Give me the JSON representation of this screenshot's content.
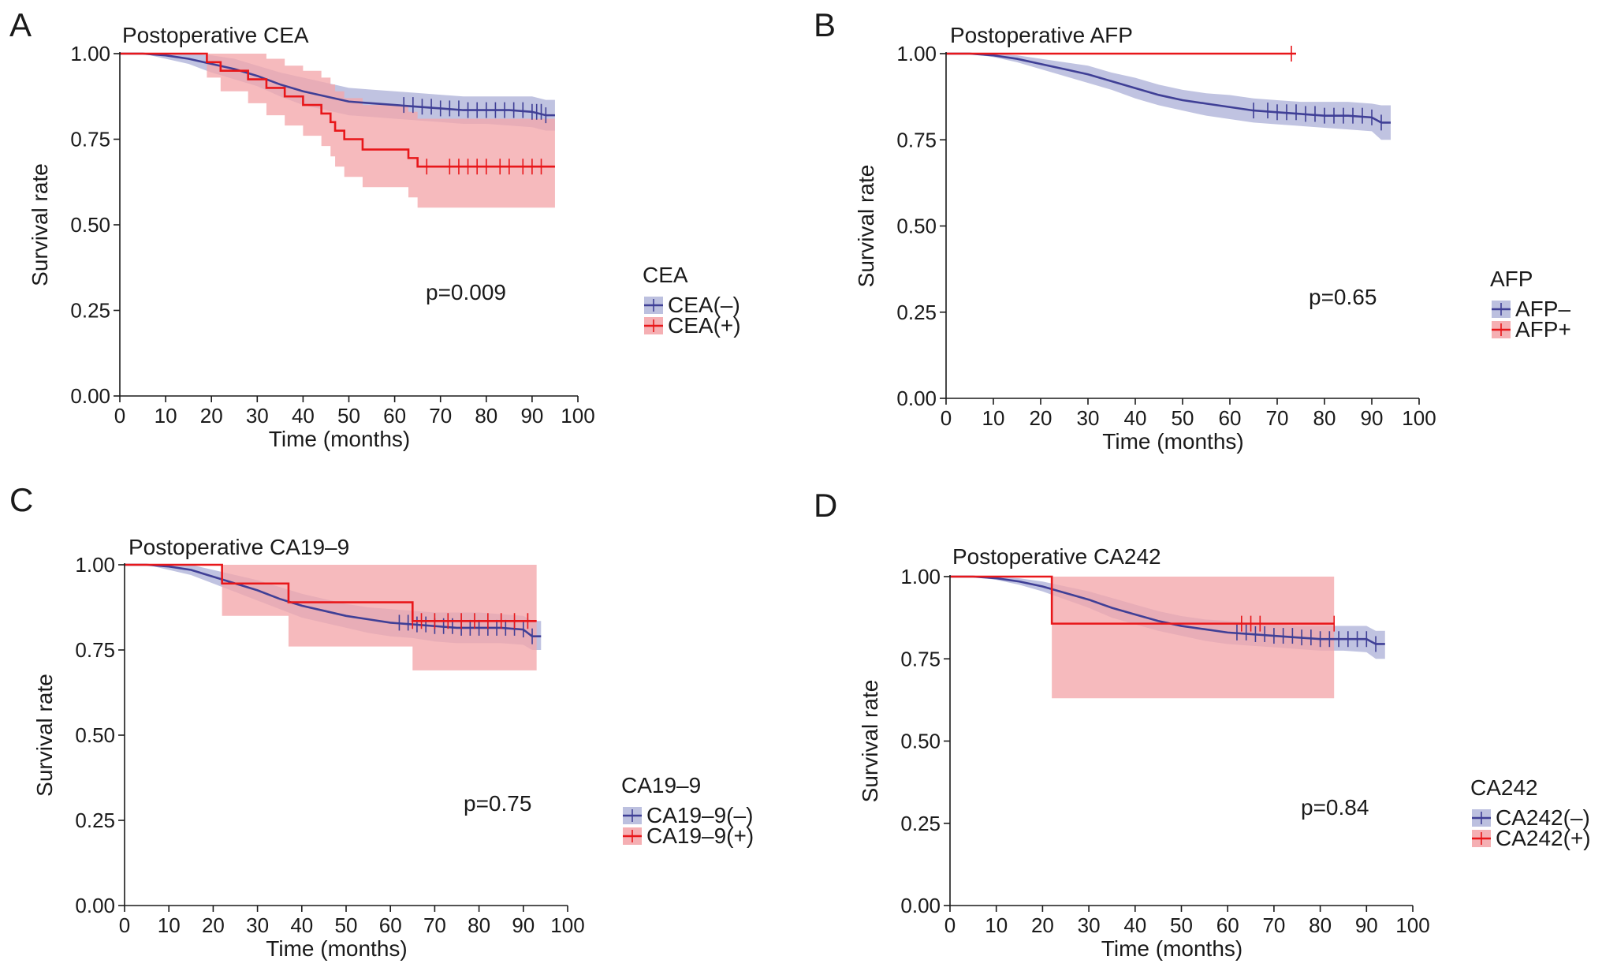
{
  "figure": {
    "colors": {
      "negative": "#3f3f96",
      "negative_band": "#b5b9dc",
      "positive": "#e8171a",
      "positive_band": "#f4a6ab",
      "axis": "#1a1a1a"
    }
  },
  "chart_data": [
    {
      "panel": "A",
      "type": "line",
      "subtype": "kaplan-meier",
      "title": "Postoperative CEA",
      "xlabel": "Time (months)",
      "ylabel": "Survival rate",
      "xlim": [
        0,
        100
      ],
      "ylim": [
        0,
        1
      ],
      "xticks": [
        "0",
        "10",
        "20",
        "30",
        "40",
        "50",
        "60",
        "70",
        "80",
        "90",
        "100"
      ],
      "yticks": [
        "0.00",
        "0.25",
        "0.50",
        "0.75",
        "1.00"
      ],
      "p_value": "p=0.009",
      "legend_title": "CEA",
      "series": [
        {
          "name": "CEA(–)",
          "color": "negative",
          "x": [
            0,
            5,
            10,
            15,
            20,
            25,
            30,
            35,
            40,
            45,
            50,
            55,
            60,
            65,
            70,
            75,
            80,
            85,
            90,
            93,
            95
          ],
          "y": [
            1.0,
            1.0,
            0.995,
            0.985,
            0.97,
            0.955,
            0.935,
            0.91,
            0.89,
            0.875,
            0.86,
            0.855,
            0.85,
            0.845,
            0.84,
            0.835,
            0.835,
            0.835,
            0.83,
            0.82,
            0.82
          ],
          "lower": [
            1.0,
            1.0,
            0.985,
            0.97,
            0.945,
            0.925,
            0.905,
            0.875,
            0.85,
            0.835,
            0.82,
            0.815,
            0.81,
            0.805,
            0.8,
            0.795,
            0.795,
            0.79,
            0.785,
            0.775,
            0.775
          ],
          "upper": [
            1.0,
            1.0,
            1.0,
            1.0,
            0.995,
            0.985,
            0.965,
            0.945,
            0.93,
            0.915,
            0.9,
            0.895,
            0.89,
            0.885,
            0.88,
            0.875,
            0.875,
            0.875,
            0.875,
            0.865,
            0.865
          ],
          "censor": [
            62,
            64,
            66,
            68,
            70,
            72,
            74,
            76,
            78,
            80,
            82,
            84,
            86,
            88,
            90,
            91,
            92,
            93
          ]
        },
        {
          "name": "CEA(+)",
          "color": "positive",
          "x": [
            0,
            19,
            19,
            22,
            22,
            28,
            28,
            32,
            32,
            36,
            36,
            40,
            40,
            44,
            44,
            46,
            46,
            47,
            47,
            49,
            49,
            53,
            53,
            61,
            61,
            63,
            63,
            65,
            65,
            95
          ],
          "y": [
            1.0,
            1.0,
            0.975,
            0.975,
            0.95,
            0.95,
            0.925,
            0.925,
            0.9,
            0.9,
            0.875,
            0.875,
            0.85,
            0.85,
            0.825,
            0.825,
            0.8,
            0.8,
            0.775,
            0.775,
            0.75,
            0.75,
            0.72,
            0.72,
            0.72,
            0.72,
            0.695,
            0.695,
            0.67,
            0.67
          ],
          "lower": [
            1.0,
            1.0,
            0.93,
            0.93,
            0.89,
            0.89,
            0.855,
            0.855,
            0.82,
            0.82,
            0.79,
            0.79,
            0.76,
            0.76,
            0.73,
            0.73,
            0.7,
            0.7,
            0.67,
            0.67,
            0.64,
            0.64,
            0.61,
            0.61,
            0.61,
            0.61,
            0.58,
            0.58,
            0.55,
            0.55
          ],
          "upper": [
            1.0,
            1.0,
            1.0,
            1.0,
            1.0,
            1.0,
            1.0,
            1.0,
            0.985,
            0.985,
            0.965,
            0.965,
            0.95,
            0.95,
            0.93,
            0.93,
            0.91,
            0.91,
            0.89,
            0.89,
            0.87,
            0.87,
            0.85,
            0.85,
            0.85,
            0.85,
            0.83,
            0.83,
            0.81,
            0.81
          ],
          "censor": [
            67,
            72,
            74,
            76,
            78,
            80,
            83,
            85,
            88,
            90,
            92
          ]
        }
      ]
    },
    {
      "panel": "B",
      "type": "line",
      "subtype": "kaplan-meier",
      "title": "Postoperative AFP",
      "xlabel": "Time (months)",
      "ylabel": "Survival rate",
      "xlim": [
        0,
        100
      ],
      "ylim": [
        0,
        1
      ],
      "xticks": [
        "0",
        "10",
        "20",
        "30",
        "40",
        "50",
        "60",
        "70",
        "80",
        "90",
        "100"
      ],
      "yticks": [
        "0.00",
        "0.25",
        "0.50",
        "0.75",
        "1.00"
      ],
      "p_value": "p=0.65",
      "legend_title": "AFP",
      "series": [
        {
          "name": "AFP–",
          "color": "negative",
          "x": [
            0,
            5,
            10,
            15,
            20,
            25,
            30,
            35,
            40,
            45,
            50,
            55,
            60,
            65,
            70,
            75,
            80,
            85,
            90,
            92,
            94
          ],
          "y": [
            1.0,
            1.0,
            0.995,
            0.985,
            0.97,
            0.955,
            0.94,
            0.92,
            0.9,
            0.88,
            0.865,
            0.855,
            0.845,
            0.835,
            0.83,
            0.825,
            0.82,
            0.82,
            0.815,
            0.8,
            0.8
          ],
          "lower": [
            1.0,
            1.0,
            0.99,
            0.975,
            0.955,
            0.935,
            0.915,
            0.895,
            0.87,
            0.85,
            0.835,
            0.82,
            0.81,
            0.8,
            0.795,
            0.79,
            0.785,
            0.78,
            0.775,
            0.75,
            0.75
          ],
          "upper": [
            1.0,
            1.0,
            1.0,
            0.995,
            0.985,
            0.975,
            0.965,
            0.945,
            0.93,
            0.91,
            0.895,
            0.885,
            0.88,
            0.87,
            0.865,
            0.86,
            0.86,
            0.86,
            0.855,
            0.85,
            0.85
          ],
          "censor": [
            65,
            68,
            70,
            72,
            74,
            76,
            78,
            80,
            82,
            84,
            86,
            88,
            90,
            92
          ]
        },
        {
          "name": "AFP+",
          "color": "positive",
          "x": [
            0,
            74
          ],
          "y": [
            1.0,
            1.0
          ],
          "lower": [
            1.0,
            1.0
          ],
          "upper": [
            1.0,
            1.0
          ],
          "censor": [
            73
          ]
        }
      ]
    },
    {
      "panel": "C",
      "type": "line",
      "subtype": "kaplan-meier",
      "title": "Postoperative CA19–9",
      "xlabel": "Time (months)",
      "ylabel": "Survival rate",
      "xlim": [
        0,
        100
      ],
      "ylim": [
        0,
        1
      ],
      "xticks": [
        "0",
        "10",
        "20",
        "30",
        "40",
        "50",
        "60",
        "70",
        "80",
        "90",
        "100"
      ],
      "yticks": [
        "0.00",
        "0.25",
        "0.50",
        "0.75",
        "1.00"
      ],
      "p_value": "p=0.75",
      "legend_title": "CA19–9",
      "series": [
        {
          "name": "CA19–9(–)",
          "color": "negative",
          "x": [
            0,
            5,
            10,
            15,
            20,
            25,
            30,
            35,
            40,
            45,
            50,
            55,
            60,
            65,
            70,
            75,
            80,
            85,
            90,
            92,
            94
          ],
          "y": [
            1.0,
            1.0,
            0.995,
            0.985,
            0.965,
            0.945,
            0.925,
            0.9,
            0.88,
            0.865,
            0.85,
            0.84,
            0.83,
            0.825,
            0.82,
            0.815,
            0.815,
            0.815,
            0.81,
            0.79,
            0.79
          ],
          "lower": [
            1.0,
            1.0,
            0.985,
            0.97,
            0.945,
            0.92,
            0.895,
            0.87,
            0.845,
            0.83,
            0.815,
            0.8,
            0.79,
            0.785,
            0.775,
            0.77,
            0.77,
            0.77,
            0.765,
            0.75,
            0.75
          ],
          "upper": [
            1.0,
            1.0,
            1.0,
            1.0,
            0.985,
            0.97,
            0.955,
            0.935,
            0.915,
            0.9,
            0.885,
            0.875,
            0.87,
            0.865,
            0.86,
            0.86,
            0.86,
            0.855,
            0.85,
            0.835,
            0.835
          ],
          "censor": [
            62,
            64,
            66,
            68,
            70,
            72,
            74,
            76,
            78,
            80,
            82,
            84,
            86,
            88,
            90,
            92
          ]
        },
        {
          "name": "CA19–9(+)",
          "color": "positive",
          "x": [
            0,
            22,
            22,
            37,
            37,
            65,
            65,
            93
          ],
          "y": [
            1.0,
            1.0,
            0.945,
            0.945,
            0.89,
            0.89,
            0.835,
            0.835
          ],
          "lower": [
            1.0,
            1.0,
            0.85,
            0.85,
            0.76,
            0.76,
            0.69,
            0.69
          ],
          "upper": [
            1.0,
            1.0,
            1.0,
            1.0,
            1.0,
            1.0,
            1.0,
            1.0
          ],
          "censor": [
            65,
            67,
            70,
            73,
            76,
            79,
            82,
            85,
            88,
            91
          ]
        }
      ]
    },
    {
      "panel": "D",
      "type": "line",
      "subtype": "kaplan-meier",
      "title": "Postoperative CA242",
      "xlabel": "Time (months)",
      "ylabel": "Survival rate",
      "xlim": [
        0,
        100
      ],
      "ylim": [
        0,
        1
      ],
      "xticks": [
        "0",
        "10",
        "20",
        "30",
        "40",
        "50",
        "60",
        "70",
        "80",
        "90",
        "100"
      ],
      "yticks": [
        "0.00",
        "0.25",
        "0.50",
        "0.75",
        "1.00"
      ],
      "p_value": "p=0.84",
      "legend_title": "CA242",
      "series": [
        {
          "name": "CA242(–)",
          "color": "negative",
          "x": [
            0,
            5,
            10,
            15,
            20,
            25,
            30,
            35,
            40,
            45,
            50,
            55,
            60,
            65,
            70,
            75,
            80,
            85,
            90,
            92,
            94
          ],
          "y": [
            1.0,
            1.0,
            0.995,
            0.985,
            0.97,
            0.95,
            0.93,
            0.905,
            0.885,
            0.865,
            0.85,
            0.84,
            0.83,
            0.825,
            0.82,
            0.815,
            0.81,
            0.81,
            0.81,
            0.795,
            0.795
          ],
          "lower": [
            1.0,
            1.0,
            0.99,
            0.975,
            0.955,
            0.93,
            0.905,
            0.875,
            0.855,
            0.835,
            0.82,
            0.805,
            0.795,
            0.79,
            0.785,
            0.78,
            0.775,
            0.775,
            0.77,
            0.75,
            0.75
          ],
          "upper": [
            1.0,
            1.0,
            1.0,
            0.995,
            0.985,
            0.97,
            0.955,
            0.935,
            0.915,
            0.895,
            0.88,
            0.87,
            0.865,
            0.86,
            0.855,
            0.85,
            0.85,
            0.85,
            0.85,
            0.835,
            0.835
          ],
          "censor": [
            62,
            64,
            66,
            68,
            70,
            72,
            74,
            76,
            78,
            80,
            82,
            84,
            86,
            88,
            90,
            92
          ]
        },
        {
          "name": "CA242(+)",
          "color": "positive",
          "x": [
            0,
            22,
            22,
            83
          ],
          "y": [
            1.0,
            1.0,
            0.857,
            0.857
          ],
          "lower": [
            1.0,
            1.0,
            0.63,
            0.63
          ],
          "upper": [
            1.0,
            1.0,
            1.0,
            1.0
          ],
          "censor": [
            63,
            65,
            67,
            83
          ]
        }
      ]
    }
  ]
}
